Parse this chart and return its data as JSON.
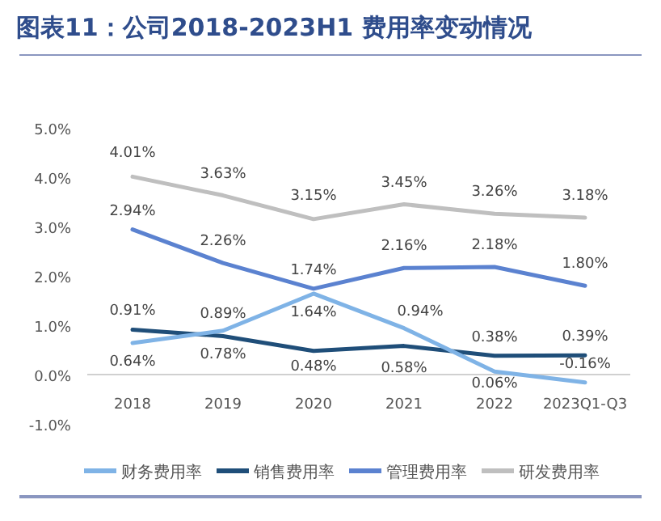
{
  "chart_data": {
    "type": "line",
    "title": "图表11：公司2018-2023H1 费用率变动情况",
    "categories": [
      "2018",
      "2019",
      "2020",
      "2021",
      "2022",
      "2023Q1-Q3"
    ],
    "series": [
      {
        "name": "财务费用率",
        "color": "#7fb3e6",
        "values": [
          0.64,
          0.89,
          1.64,
          0.94,
          0.06,
          -0.16
        ],
        "value_labels": [
          "0.64%",
          "0.89%",
          "1.64%",
          "0.94%",
          "0.06%",
          "-0.16%"
        ]
      },
      {
        "name": "销售费用率",
        "color": "#1f4e79",
        "values": [
          0.91,
          0.78,
          0.48,
          0.58,
          0.38,
          0.39
        ],
        "value_labels": [
          "0.91%",
          "0.78%",
          "0.48%",
          "0.58%",
          "0.38%",
          "0.39%"
        ]
      },
      {
        "name": "管理费用率",
        "color": "#5b82d0",
        "values": [
          2.94,
          2.26,
          1.74,
          2.16,
          2.18,
          1.8
        ],
        "value_labels": [
          "2.94%",
          "2.26%",
          "1.74%",
          "2.16%",
          "2.18%",
          "1.80%"
        ]
      },
      {
        "name": "研发费用率",
        "color": "#bfbfbf",
        "values": [
          4.01,
          3.63,
          3.15,
          3.45,
          3.26,
          3.18
        ],
        "value_labels": [
          "4.01%",
          "3.63%",
          "3.15%",
          "3.45%",
          "3.26%",
          "3.18%"
        ]
      }
    ],
    "ylim": [
      -1,
      5
    ],
    "yticks": [
      {
        "value": -1,
        "label": "-1.0%"
      },
      {
        "value": 0,
        "label": "0.0%"
      },
      {
        "value": 1,
        "label": "1.0%"
      },
      {
        "value": 2,
        "label": "2.0%"
      },
      {
        "value": 3,
        "label": "3.0%"
      },
      {
        "value": 4,
        "label": "4.0%"
      },
      {
        "value": 5,
        "label": "5.0%"
      }
    ],
    "legend": "bottom",
    "grid": false,
    "marker": "none",
    "line_style": "solid"
  }
}
